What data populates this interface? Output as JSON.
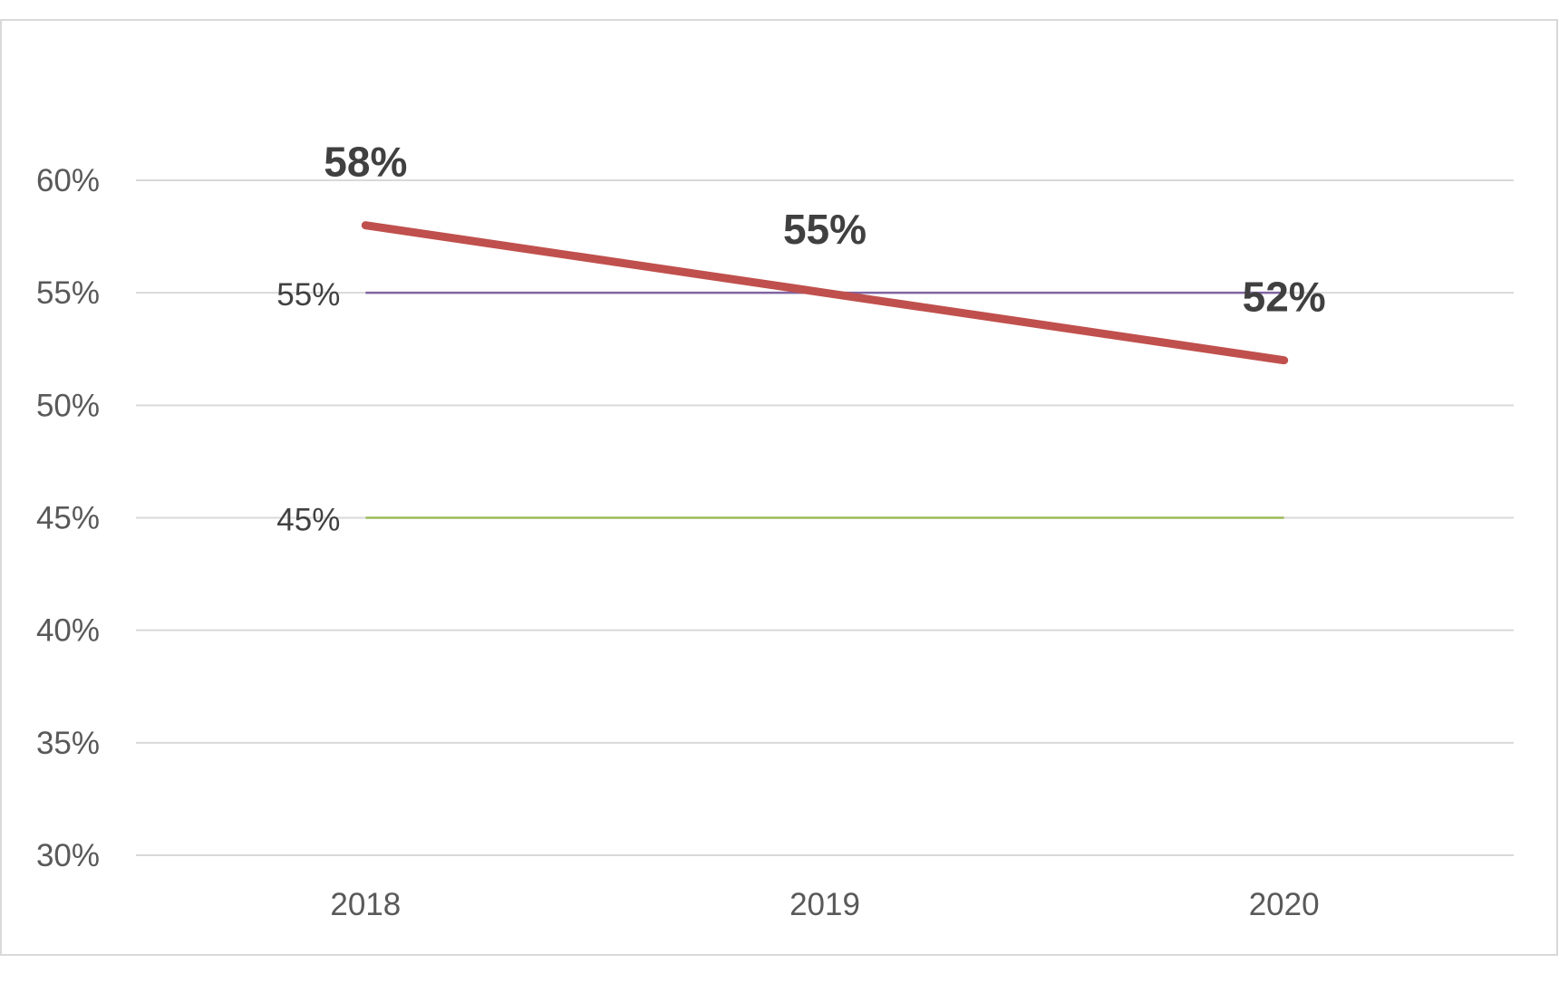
{
  "chart_data": {
    "type": "line",
    "categories": [
      "2018",
      "2019",
      "2020"
    ],
    "series": [
      {
        "values": [
          58,
          55,
          52
        ],
        "color": "#c0504d",
        "labels": [
          "58%",
          "55%",
          "52%"
        ]
      }
    ],
    "reference_lines": [
      {
        "value": 55,
        "color": "#8064a2",
        "label": "55%"
      },
      {
        "value": 45,
        "color": "#9bbb59",
        "label": "45%"
      }
    ],
    "ylim": [
      30,
      60
    ],
    "yticks": [
      {
        "value": 60,
        "label": "60%"
      },
      {
        "value": 55,
        "label": "55%"
      },
      {
        "value": 50,
        "label": "50%"
      },
      {
        "value": 45,
        "label": "45%"
      },
      {
        "value": 40,
        "label": "40%"
      },
      {
        "value": 35,
        "label": "35%"
      },
      {
        "value": 30,
        "label": "30%"
      }
    ],
    "title": "",
    "xlabel": "",
    "ylabel": "",
    "grid": true,
    "legend": "none",
    "gridline_color": "#d9d9d9",
    "border_color": "#d9d9d9"
  }
}
